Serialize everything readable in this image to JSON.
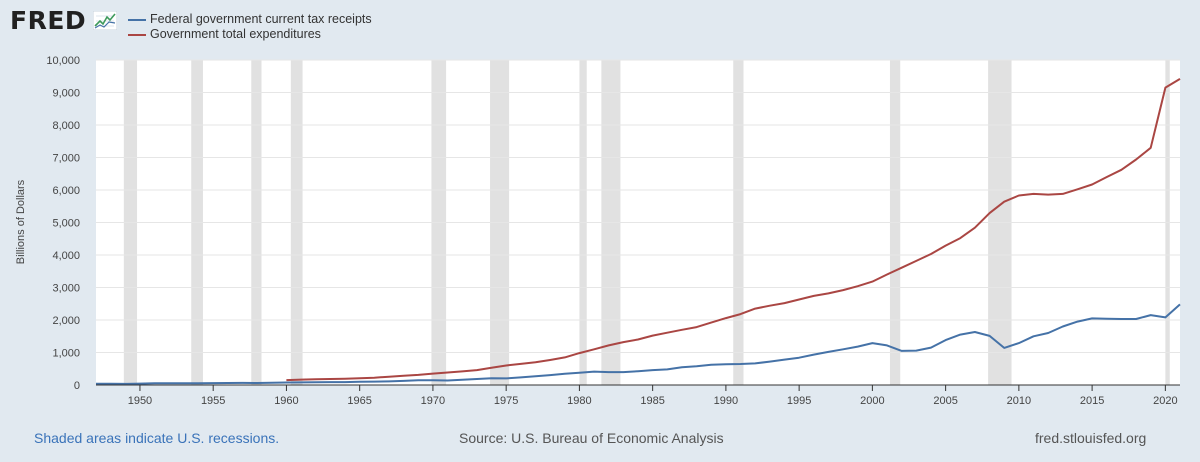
{
  "header": {
    "logo_text": "FRED",
    "logo_mark": "fred-chart-icon"
  },
  "legend": [
    {
      "label": "Federal government current tax receipts",
      "color": "#4572a7"
    },
    {
      "label": "Government total expenditures",
      "color": "#aa4643"
    }
  ],
  "footer": {
    "note": "Shaded areas indicate U.S. recessions.",
    "source": "Source: U.S. Bureau of Economic Analysis",
    "site": "fred.stlouisfed.org"
  },
  "chart_data": {
    "type": "line",
    "ylabel": "Billions of Dollars",
    "xlabel": "",
    "xlim": [
      1947,
      2021
    ],
    "ylim": [
      0,
      10000
    ],
    "xticks": [
      1950,
      1955,
      1960,
      1965,
      1970,
      1975,
      1980,
      1985,
      1990,
      1995,
      2000,
      2005,
      2010,
      2015,
      2020
    ],
    "yticks": [
      0,
      1000,
      2000,
      3000,
      4000,
      5000,
      6000,
      7000,
      8000,
      9000,
      10000
    ],
    "ytick_labels": [
      "0",
      "1,000",
      "2,000",
      "3,000",
      "4,000",
      "5,000",
      "6,000",
      "7,000",
      "8,000",
      "9,000",
      "10,000"
    ],
    "grid": true,
    "legend_position": "top-left",
    "recessions": [
      [
        1948.9,
        1949.8
      ],
      [
        1953.5,
        1954.3
      ],
      [
        1957.6,
        1958.3
      ],
      [
        1960.3,
        1961.1
      ],
      [
        1969.9,
        1970.9
      ],
      [
        1973.9,
        1975.2
      ],
      [
        1980.0,
        1980.5
      ],
      [
        1981.5,
        1982.8
      ],
      [
        1990.5,
        1991.2
      ],
      [
        2001.2,
        2001.9
      ],
      [
        2007.9,
        2009.5
      ],
      [
        2020.0,
        2020.3
      ]
    ],
    "series": [
      {
        "name": "Federal government current tax receipts",
        "color": "#4572a7",
        "x": [
          1947,
          1948,
          1949,
          1950,
          1951,
          1952,
          1953,
          1954,
          1955,
          1956,
          1957,
          1958,
          1959,
          1960,
          1961,
          1962,
          1963,
          1964,
          1965,
          1966,
          1967,
          1968,
          1969,
          1970,
          1971,
          1972,
          1973,
          1974,
          1975,
          1976,
          1977,
          1978,
          1979,
          1980,
          1981,
          1982,
          1983,
          1984,
          1985,
          1986,
          1987,
          1988,
          1989,
          1990,
          1991,
          1992,
          1993,
          1994,
          1995,
          1996,
          1997,
          1998,
          1999,
          2000,
          2001,
          2002,
          2003,
          2004,
          2005,
          2006,
          2007,
          2008,
          2009,
          2010,
          2011,
          2012,
          2013,
          2014,
          2015,
          2016,
          2017,
          2018,
          2019,
          2020,
          2021
        ],
        "values": [
          38,
          37,
          34,
          42,
          52,
          54,
          56,
          53,
          59,
          63,
          66,
          63,
          71,
          77,
          79,
          85,
          90,
          90,
          97,
          106,
          110,
          127,
          147,
          144,
          138,
          163,
          186,
          210,
          204,
          235,
          268,
          306,
          346,
          377,
          413,
          396,
          396,
          425,
          459,
          481,
          549,
          574,
          622,
          641,
          645,
          666,
          720,
          780,
          840,
          935,
          1020,
          1100,
          1180,
          1290,
          1220,
          1050,
          1060,
          1150,
          1380,
          1550,
          1630,
          1510,
          1140,
          1290,
          1500,
          1600,
          1800,
          1950,
          2050,
          2040,
          2030,
          2030,
          2150,
          2080,
          2480
        ]
      },
      {
        "name": "Government total expenditures",
        "color": "#aa4643",
        "x": [
          1960,
          1961,
          1962,
          1963,
          1964,
          1965,
          1966,
          1967,
          1968,
          1969,
          1970,
          1971,
          1972,
          1973,
          1974,
          1975,
          1976,
          1977,
          1978,
          1979,
          1980,
          1981,
          1982,
          1983,
          1984,
          1985,
          1986,
          1987,
          1988,
          1989,
          1990,
          1991,
          1992,
          1993,
          1994,
          1995,
          1996,
          1997,
          1998,
          1999,
          2000,
          2001,
          2002,
          2003,
          2004,
          2005,
          2006,
          2007,
          2008,
          2009,
          2010,
          2011,
          2012,
          2013,
          2014,
          2015,
          2016,
          2017,
          2018,
          2019,
          2020,
          2021
        ],
        "values": [
          150,
          165,
          175,
          185,
          195,
          205,
          225,
          255,
          285,
          310,
          350,
          385,
          420,
          460,
          530,
          600,
          650,
          700,
          770,
          850,
          980,
          1100,
          1220,
          1320,
          1400,
          1520,
          1610,
          1700,
          1780,
          1920,
          2060,
          2180,
          2350,
          2440,
          2520,
          2630,
          2740,
          2820,
          2920,
          3040,
          3180,
          3400,
          3610,
          3820,
          4030,
          4290,
          4520,
          4840,
          5290,
          5640,
          5830,
          5880,
          5860,
          5880,
          6020,
          6170,
          6400,
          6620,
          6940,
          7300,
          9150,
          9420
        ]
      }
    ]
  }
}
